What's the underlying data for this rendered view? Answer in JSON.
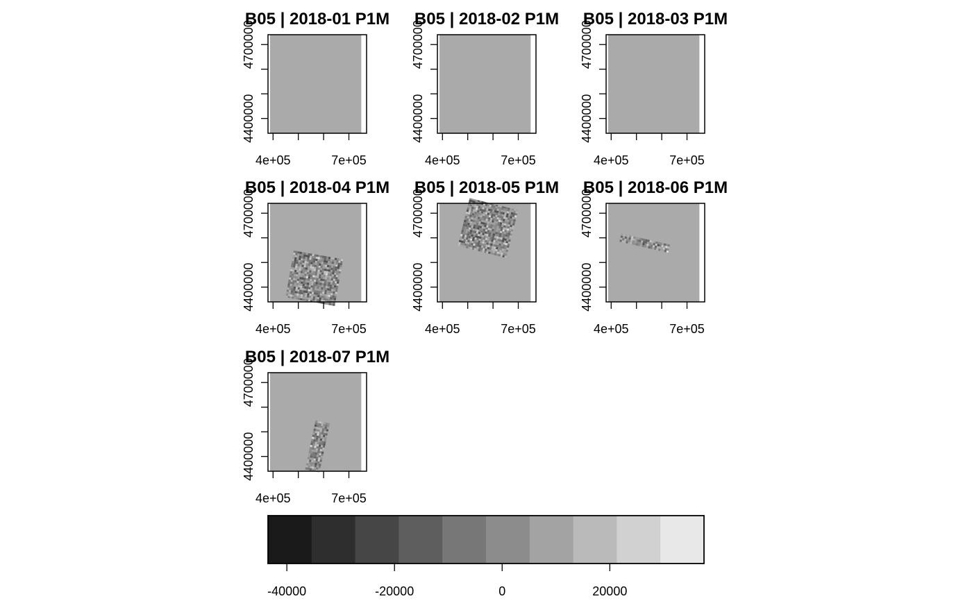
{
  "chart_data": {
    "type": "heatmap",
    "panels": [
      {
        "title": "B05 | 2018-01 P1M",
        "has_scene": false
      },
      {
        "title": "B05 | 2018-02 P1M",
        "has_scene": false
      },
      {
        "title": "B05 | 2018-03 P1M",
        "has_scene": false
      },
      {
        "title": "B05 | 2018-04 P1M",
        "has_scene": true,
        "scene": {
          "center_x": 560000,
          "center_y": 4425000,
          "width": 195000,
          "height": 215000,
          "rotation_deg": 10
        }
      },
      {
        "title": "B05 | 2018-05 P1M",
        "has_scene": true,
        "scene": {
          "center_x": 580000,
          "center_y": 4645000,
          "width": 195000,
          "height": 195000,
          "rotation_deg": 14
        }
      },
      {
        "title": "B05 | 2018-06 P1M",
        "has_scene": true,
        "scene": {
          "center_x": 530000,
          "center_y": 4582000,
          "width": 190000,
          "height": 28000,
          "rotation_deg": 13
        }
      },
      {
        "title": "B05 | 2018-07 P1M",
        "has_scene": true,
        "scene": {
          "center_x": 570000,
          "center_y": 4431000,
          "width": 50000,
          "height": 225000,
          "rotation_deg": 12
        }
      }
    ],
    "x_ticks": [
      {
        "value": 400000,
        "label": "4e+05"
      },
      {
        "value": 500000,
        "label": ""
      },
      {
        "value": 600000,
        "label": ""
      },
      {
        "value": 700000,
        "label": "7e+05"
      },
      {
        "value": 800000,
        "label": ""
      }
    ],
    "y_ticks": [
      {
        "value": 4400000,
        "label": "4400000"
      },
      {
        "value": 4500000,
        "label": ""
      },
      {
        "value": 4600000,
        "label": ""
      },
      {
        "value": 4700000,
        "label": "4700000"
      }
    ],
    "xlim": [
      380000,
      770000
    ],
    "ylim": [
      4340000,
      4740000
    ],
    "raster_extent": {
      "x": [
        370000,
        760000
      ],
      "y": [
        4340000,
        4740000
      ]
    },
    "legend": {
      "placement": "bottom",
      "range": [
        -43500,
        37500
      ],
      "breaks": [
        -43500,
        -35400,
        -27300,
        -19200,
        -11100,
        -3000,
        5100,
        13200,
        21300,
        29400,
        37500
      ],
      "colors": [
        "#1a1a1a",
        "#2e2e2e",
        "#464646",
        "#5e5e5e",
        "#777777",
        "#8c8c8c",
        "#a3a3a3",
        "#bababa",
        "#d1d1d1",
        "#e8e8e8"
      ],
      "ticks": [
        {
          "value": -40000,
          "label": "-40000"
        },
        {
          "value": -20000,
          "label": "-20000"
        },
        {
          "value": 0,
          "label": "0"
        },
        {
          "value": 20000,
          "label": "20000"
        }
      ]
    },
    "colors": {
      "background": "#aaaaaa",
      "scene_mid": "#8a8a8a"
    }
  }
}
